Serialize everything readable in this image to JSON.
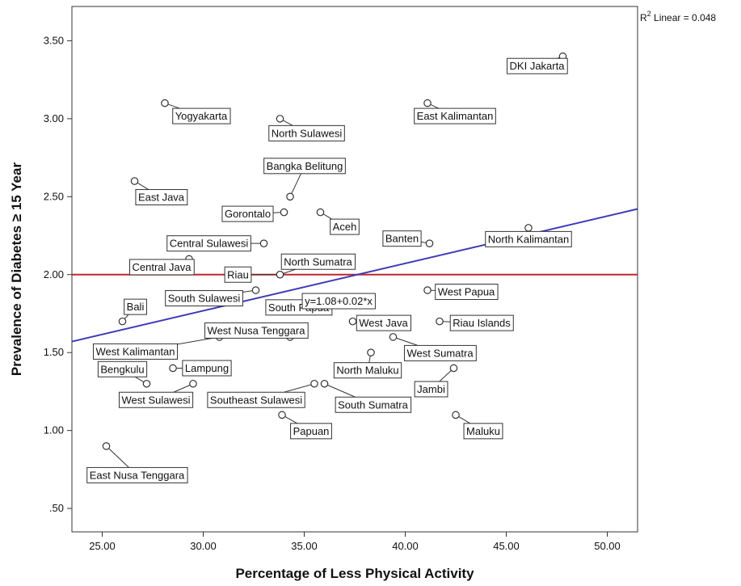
{
  "chart_data": {
    "type": "scatter",
    "xlabel": "Percentage of Less Physical Activity",
    "ylabel": "Prevalence of Diabetes ≥ 15 Year",
    "xlim": [
      23.5,
      51.5
    ],
    "ylim": [
      0.35,
      3.72
    ],
    "x_ticks": [
      "25.00",
      "30.00",
      "35.00",
      "40.00",
      "45.00",
      "50.00"
    ],
    "y_ticks": [
      ".50",
      "1.00",
      "1.50",
      "2.00",
      "2.50",
      "3.00",
      "3.50"
    ],
    "r2_text": "R² Linear = 0.048",
    "fit_equation": "y=1.08+0.02*x",
    "reference_line_y": 2.0,
    "grid": false,
    "colors": {
      "fit_line": "#3b3bb8",
      "reference_line": "#c0272d",
      "points": "#333333"
    },
    "points": [
      {
        "label": "DKI Jakarta",
        "x": 47.8,
        "y": 3.4
      },
      {
        "label": "Yogyakarta",
        "x": 28.1,
        "y": 3.1
      },
      {
        "label": "East Kalimantan",
        "x": 41.1,
        "y": 3.1
      },
      {
        "label": "North Sulawesi",
        "x": 33.8,
        "y": 3.0
      },
      {
        "label": "East Java",
        "x": 26.6,
        "y": 2.6
      },
      {
        "label": "Bangka Belitung",
        "x": 34.3,
        "y": 2.5
      },
      {
        "label": "Gorontalo",
        "x": 34.0,
        "y": 2.4
      },
      {
        "label": "Aceh",
        "x": 35.8,
        "y": 2.4
      },
      {
        "label": "North Kalimantan",
        "x": 46.1,
        "y": 2.3
      },
      {
        "label": "Central Sulawesi",
        "x": 33.0,
        "y": 2.2
      },
      {
        "label": "Banten",
        "x": 41.2,
        "y": 2.2
      },
      {
        "label": "Central Java",
        "x": 29.3,
        "y": 2.1
      },
      {
        "label": "Riau",
        "x": 33.8,
        "y": 2.0
      },
      {
        "label": "North Sumatra",
        "x": 33.8,
        "y": 2.0
      },
      {
        "label": "South Sulawesi",
        "x": 32.6,
        "y": 1.9
      },
      {
        "label": "South Papua",
        "x": 33.6,
        "y": 1.8
      },
      {
        "label": "West Papua",
        "x": 41.1,
        "y": 1.9
      },
      {
        "label": "Bali",
        "x": 26.0,
        "y": 1.7
      },
      {
        "label": "West Java",
        "x": 37.4,
        "y": 1.7
      },
      {
        "label": "Riau Islands",
        "x": 41.7,
        "y": 1.7
      },
      {
        "label": "West Kalimantan",
        "x": 30.8,
        "y": 1.6
      },
      {
        "label": "West Nusa Tenggara",
        "x": 34.3,
        "y": 1.6
      },
      {
        "label": "West Sumatra",
        "x": 39.4,
        "y": 1.6
      },
      {
        "label": "North Maluku",
        "x": 38.3,
        "y": 1.5
      },
      {
        "label": "Bengkulu",
        "x": 27.2,
        "y": 1.3
      },
      {
        "label": "Lampung",
        "x": 28.5,
        "y": 1.4
      },
      {
        "label": "West Sulawesi",
        "x": 29.5,
        "y": 1.3
      },
      {
        "label": "Southeast Sulawesi",
        "x": 35.5,
        "y": 1.3
      },
      {
        "label": "South Sumatra",
        "x": 36.0,
        "y": 1.3
      },
      {
        "label": "Jambi",
        "x": 42.4,
        "y": 1.4
      },
      {
        "label": "Papuan",
        "x": 33.9,
        "y": 1.1
      },
      {
        "label": "Maluku",
        "x": 42.5,
        "y": 1.1
      },
      {
        "label": "East Nusa Tenggara",
        "x": 25.2,
        "y": 0.9
      }
    ]
  }
}
